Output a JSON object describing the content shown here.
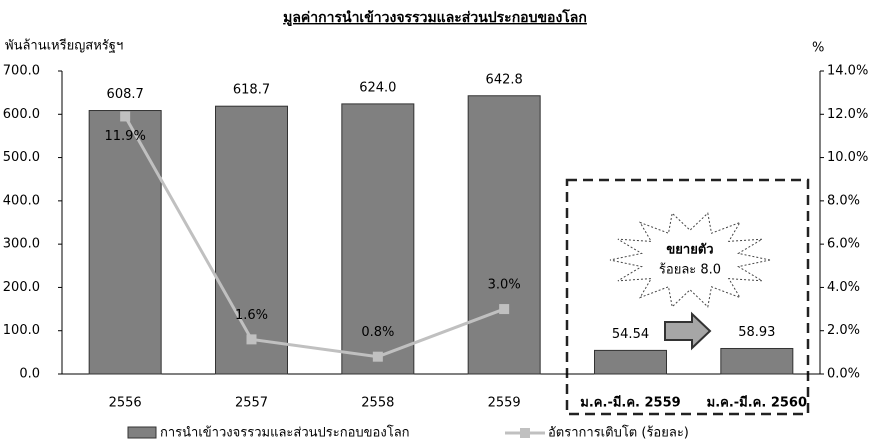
{
  "chart_data": {
    "type": "bar",
    "title": "มูลค่าการนำเข้าวงจรรวมและส่วนประกอบของโลก",
    "y_label": "พันล้านเหรียญสหรัฐฯ",
    "y2_label": "%",
    "categories": [
      "2556",
      "2557",
      "2558",
      "2559",
      "ม.ค.-มี.ค. 2559",
      "ม.ค.-มี.ค. 2560"
    ],
    "series": [
      {
        "name": "การนำเข้าวงจรรวมและส่วนประกอบของโลก",
        "color": "#808080",
        "type": "bar",
        "values": [
          608.7,
          618.7,
          624.0,
          642.8,
          54.54,
          58.93
        ],
        "value_labels": [
          "608.7",
          "618.7",
          "624.0",
          "642.8",
          "54.54",
          "58.93"
        ]
      },
      {
        "name": "อัตราการเติบโต (ร้อยละ)",
        "color": "#c0c0c0",
        "type": "line",
        "axis": "y2",
        "values": [
          11.9,
          1.6,
          0.8,
          3.0,
          null,
          null
        ],
        "value_labels": [
          "11.9%",
          "1.6%",
          "0.8%",
          "3.0%",
          null,
          null
        ]
      }
    ],
    "annotation": [
      "ขยายตัว",
      "ร้อยละ 8.0"
    ],
    "ylim": [
      0,
      700
    ],
    "yticks": [
      {
        "value": 0,
        "label": "0.0"
      },
      {
        "value": 100,
        "label": "100.0"
      },
      {
        "value": 200,
        "label": "200.0"
      },
      {
        "value": 300,
        "label": "300.0"
      },
      {
        "value": 400,
        "label": "400.0"
      },
      {
        "value": 500,
        "label": "500.0"
      },
      {
        "value": 600,
        "label": "600.0"
      },
      {
        "value": 700,
        "label": "700.0"
      }
    ],
    "y2lim": [
      0,
      14
    ],
    "y2ticks": [
      {
        "value": 0,
        "label": "0.0%"
      },
      {
        "value": 2,
        "label": "2.0%"
      },
      {
        "value": 4,
        "label": "4.0%"
      },
      {
        "value": 6,
        "label": "6.0%"
      },
      {
        "value": 8,
        "label": "8.0%"
      },
      {
        "value": 10,
        "label": "10.0%"
      },
      {
        "value": 12,
        "label": "12.0%"
      },
      {
        "value": 14,
        "label": "14.0%"
      }
    ],
    "legend": "bottom"
  }
}
